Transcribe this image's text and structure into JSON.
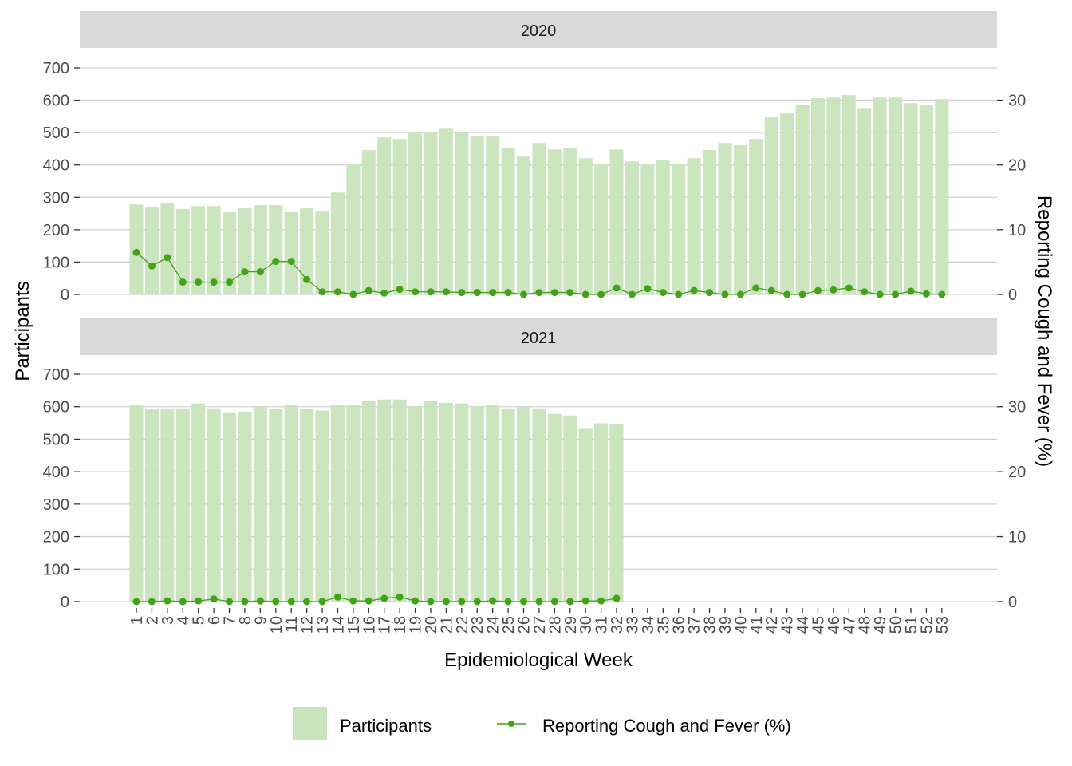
{
  "chart_data": {
    "type": "bar+line",
    "xlabel": "Epidemiological Week",
    "ylabel": "Participants",
    "ylabel_right": "Reporting Cough and Fever (%)",
    "ylim": [
      0,
      700
    ],
    "yticks": [
      0,
      100,
      200,
      300,
      400,
      500,
      600,
      700
    ],
    "ylim_right": [
      0,
      35
    ],
    "yticks_right": [
      0,
      10,
      20,
      30
    ],
    "x": [
      1,
      2,
      3,
      4,
      5,
      6,
      7,
      8,
      9,
      10,
      11,
      12,
      13,
      14,
      15,
      16,
      17,
      18,
      19,
      20,
      21,
      22,
      23,
      24,
      25,
      26,
      27,
      28,
      29,
      30,
      31,
      32,
      33,
      34,
      35,
      36,
      37,
      38,
      39,
      40,
      41,
      42,
      43,
      44,
      45,
      46,
      47,
      48,
      49,
      50,
      51,
      52,
      53
    ],
    "grid": true,
    "legend": "bottom",
    "colors": {
      "bars": "#c8e4bc",
      "line": "#44a21a",
      "strip": "#d9d9d9",
      "grid": "#d0d0d0"
    },
    "legend_entries": [
      "Participants",
      "Reporting Cough and Fever (%)"
    ],
    "panels": [
      {
        "label": "2020",
        "participants": [
          278,
          271,
          283,
          264,
          273,
          273,
          254,
          266,
          276,
          276,
          254,
          266,
          259,
          315,
          404,
          446,
          485,
          480,
          502,
          502,
          512,
          500,
          490,
          488,
          453,
          426,
          468,
          448,
          453,
          421,
          401,
          448,
          411,
          401,
          416,
          404,
          421,
          446,
          468,
          461,
          480,
          547,
          559,
          586,
          606,
          608,
          616,
          576,
          608,
          608,
          591,
          584,
          603
        ],
        "cough_fever_pct": [
          6.5,
          4.4,
          5.7,
          1.9,
          1.9,
          1.9,
          1.9,
          3.5,
          3.5,
          5.1,
          5.1,
          2.3,
          0.4,
          0.4,
          0,
          0.6,
          0.2,
          0.8,
          0.4,
          0.4,
          0.4,
          0.3,
          0.3,
          0.3,
          0.3,
          0,
          0.3,
          0.3,
          0.3,
          0,
          0,
          1.0,
          0,
          0.9,
          0.3,
          0,
          0.6,
          0.3,
          0,
          0,
          1.0,
          0.6,
          0,
          0,
          0.6,
          0.7,
          1.0,
          0.4,
          0,
          0,
          0.5,
          0.1,
          0
        ]
      },
      {
        "label": "2021",
        "participants": [
          605,
          593,
          595,
          595,
          610,
          595,
          583,
          585,
          598,
          593,
          605,
          593,
          588,
          605,
          605,
          617,
          622,
          622,
          602,
          617,
          612,
          610,
          602,
          605,
          595,
          598,
          595,
          578,
          573,
          532,
          549,
          546
        ],
        "cough_fever_pct": [
          0,
          0,
          0.1,
          0,
          0.1,
          0.4,
          0,
          0,
          0.1,
          0,
          0,
          0,
          0,
          0.7,
          0.1,
          0.1,
          0.5,
          0.7,
          0.1,
          0,
          0,
          0,
          0,
          0.1,
          0,
          0,
          0,
          0,
          0,
          0.1,
          0.1,
          0.5
        ]
      }
    ]
  }
}
